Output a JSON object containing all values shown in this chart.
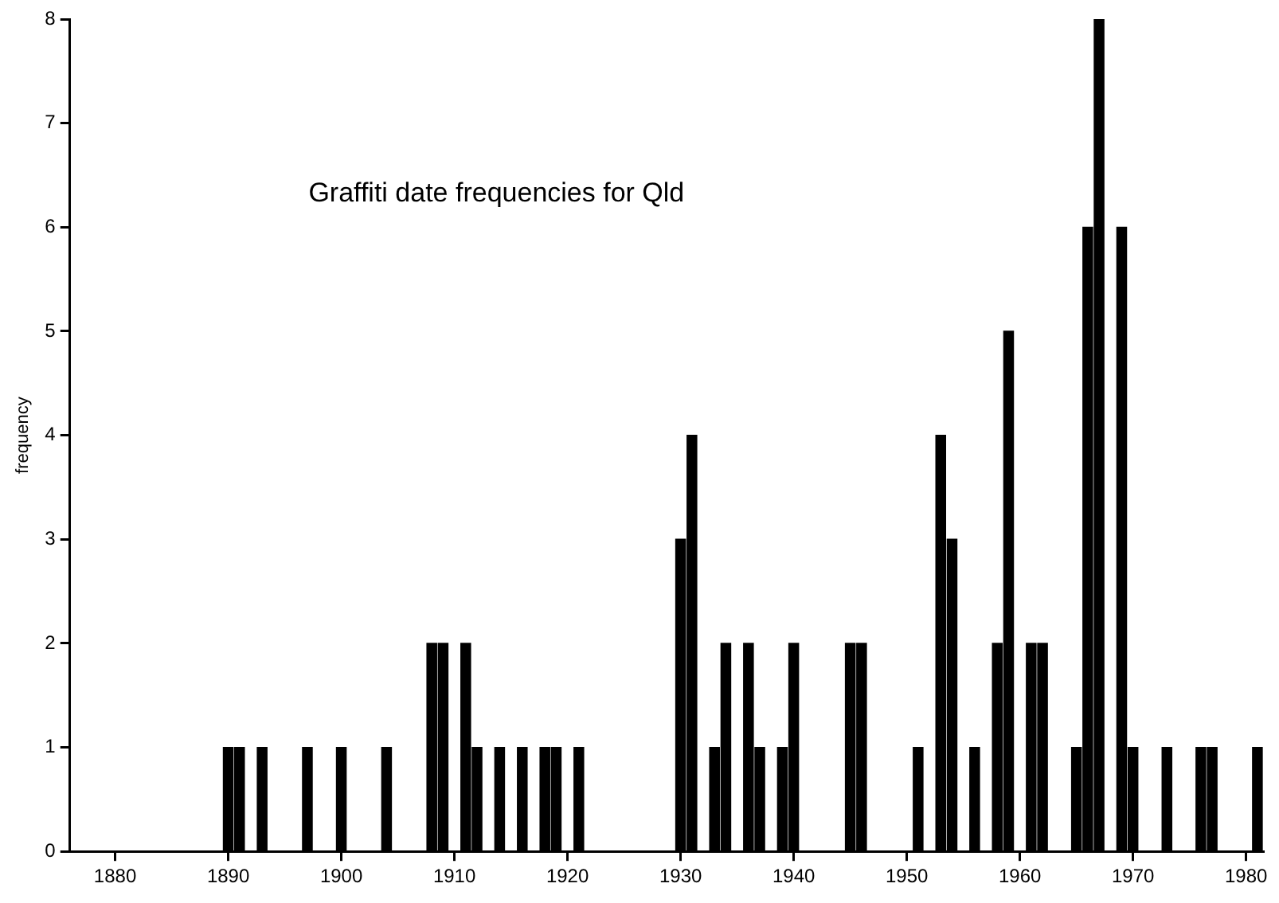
{
  "chart_data": {
    "type": "histogram",
    "title": "Graffiti date frequencies for Qld",
    "ylabel": "frequency",
    "bins": [
      1889.5,
      1890.5,
      1891.5,
      1892.5,
      1893.5,
      1894.5,
      1895.5,
      1896.5,
      1897.5,
      1898.5,
      1899.5,
      1900.5,
      1901.5,
      1902.5,
      1903.5,
      1904.5,
      1905.5,
      1906.5,
      1907.5,
      1908.5,
      1909.5,
      1910.5,
      1911.5,
      1912.5,
      1913.5,
      1914.5,
      1915.5,
      1916.5,
      1917.5,
      1918.5,
      1919.5,
      1920.5,
      1921.5,
      1922.5,
      1923.5,
      1924.5,
      1925.5,
      1926.5,
      1927.5,
      1928.5,
      1929.5,
      1930.5,
      1931.5,
      1932.5,
      1933.5,
      1934.5,
      1935.5,
      1936.5,
      1937.5,
      1938.5,
      1939.5,
      1940.5,
      1941.5,
      1942.5,
      1943.5,
      1944.5,
      1945.5,
      1946.5,
      1947.5,
      1948.5,
      1949.5,
      1950.5,
      1951.5,
      1952.5,
      1953.5,
      1954.5,
      1955.5,
      1956.5,
      1957.5,
      1958.5,
      1959.5,
      1960.5,
      1961.5,
      1962.5,
      1963.5,
      1964.5,
      1965.5,
      1966.5,
      1967.5,
      1968.5,
      1969.5,
      1970.5,
      1971.5,
      1972.5,
      1973.5,
      1974.5,
      1975.5,
      1976.5,
      1977.5,
      1978.5,
      1979.5,
      1980.5,
      1981.5
    ],
    "values": [
      1,
      1,
      0,
      1,
      0,
      0,
      0,
      1,
      0,
      0,
      1,
      0,
      0,
      0,
      1,
      0,
      0,
      0,
      2,
      2,
      0,
      2,
      1,
      0,
      1,
      0,
      1,
      0,
      1,
      1,
      0,
      1,
      0,
      0,
      0,
      0,
      0,
      0,
      0,
      0,
      3,
      4,
      0,
      1,
      2,
      0,
      2,
      1,
      0,
      1,
      2,
      0,
      0,
      0,
      0,
      2,
      2,
      0,
      0,
      0,
      0,
      1,
      0,
      4,
      3,
      0,
      1,
      0,
      2,
      5,
      0,
      2,
      2,
      0,
      0,
      1,
      6,
      8,
      0,
      6,
      1,
      0,
      0,
      1,
      0,
      0,
      1,
      1,
      0,
      0,
      0,
      1
    ],
    "color": "#000000",
    "xlim": [
      1876,
      1981.5
    ],
    "xticks": [
      1880,
      1890,
      1900,
      1910,
      1920,
      1930,
      1940,
      1950,
      1960,
      1970,
      1980
    ],
    "ylim": [
      0,
      8
    ],
    "yticks": [
      0,
      1,
      2,
      3,
      4,
      5,
      6,
      7,
      8
    ],
    "grid": false,
    "legend": false
  }
}
